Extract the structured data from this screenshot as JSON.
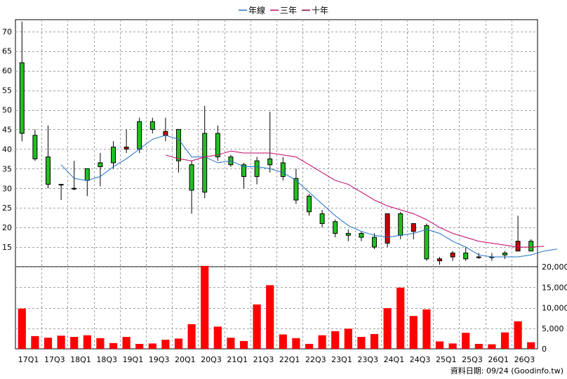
{
  "chart_data": {
    "type": "candlestick-with-volume",
    "legend": [
      {
        "name": "年線",
        "color": "#1f6fc5"
      },
      {
        "name": "三年",
        "color": "#c0006a"
      },
      {
        "name": "十年",
        "color": "#800040"
      }
    ],
    "price_axis": {
      "ticks": [
        15,
        20,
        25,
        30,
        35,
        40,
        45,
        50,
        55,
        60,
        65,
        70
      ],
      "range": [
        10,
        73
      ]
    },
    "volume_axis": {
      "ticks": [
        0,
        5000,
        10000,
        15000,
        20000
      ],
      "labels": [
        "0",
        "5,000",
        "10,000",
        "15,000",
        "20,000"
      ],
      "range": [
        0,
        20000
      ]
    },
    "x_labels": [
      "17Q1",
      "17Q3",
      "18Q1",
      "18Q3",
      "19Q1",
      "19Q3",
      "20Q1",
      "20Q3",
      "21Q1",
      "21Q3",
      "22Q1",
      "22Q3",
      "23Q1",
      "23Q3",
      "24Q1",
      "24Q3",
      "25Q1",
      "25Q3",
      "26Q1",
      "26Q3"
    ],
    "grid": true,
    "legend_position": "top-center",
    "candles": [
      {
        "o": 44,
        "h": 72.5,
        "l": 42,
        "c": 62
      },
      {
        "o": 37.5,
        "h": 45,
        "l": 37,
        "c": 43.5
      },
      {
        "o": 31,
        "h": 46,
        "l": 30,
        "c": 38
      },
      {
        "o": 31,
        "h": 31,
        "l": 27,
        "c": 31
      },
      {
        "o": 30,
        "h": 37,
        "l": 29.5,
        "c": 30
      },
      {
        "o": 32,
        "h": 35,
        "l": 28,
        "c": 35
      },
      {
        "o": 35.5,
        "h": 39,
        "l": 30.5,
        "c": 36.5
      },
      {
        "o": 36.5,
        "h": 42,
        "l": 35,
        "c": 40.5
      },
      {
        "o": 40.5,
        "h": 45,
        "l": 39,
        "c": 40
      },
      {
        "o": 40,
        "h": 48,
        "l": 39,
        "c": 47
      },
      {
        "o": 45,
        "h": 48,
        "l": 44,
        "c": 47
      },
      {
        "o": 44.5,
        "h": 48,
        "l": 42,
        "c": 43.5
      },
      {
        "o": 37,
        "h": 45,
        "l": 34,
        "c": 45
      },
      {
        "o": 29.5,
        "h": 37,
        "l": 23.5,
        "c": 36
      },
      {
        "o": 29,
        "h": 51,
        "l": 27.5,
        "c": 44
      },
      {
        "o": 38,
        "h": 46,
        "l": 37,
        "c": 44
      },
      {
        "o": 36,
        "h": 38.5,
        "l": 35.5,
        "c": 38
      },
      {
        "o": 33,
        "h": 36.5,
        "l": 30,
        "c": 36
      },
      {
        "o": 33,
        "h": 38,
        "l": 31,
        "c": 37
      },
      {
        "o": 36,
        "h": 49.5,
        "l": 34,
        "c": 37.5
      },
      {
        "o": 33,
        "h": 38,
        "l": 32,
        "c": 36.5
      },
      {
        "o": 27,
        "h": 35,
        "l": 26,
        "c": 32.5
      },
      {
        "o": 24,
        "h": 28.5,
        "l": 23,
        "c": 28
      },
      {
        "o": 21,
        "h": 24.5,
        "l": 20,
        "c": 23.5
      },
      {
        "o": 18.5,
        "h": 22,
        "l": 17.5,
        "c": 21.5
      },
      {
        "o": 18,
        "h": 19.5,
        "l": 16.5,
        "c": 18.5
      },
      {
        "o": 17.5,
        "h": 19,
        "l": 16.5,
        "c": 18.5
      },
      {
        "o": 15,
        "h": 18.5,
        "l": 14.5,
        "c": 17.5
      },
      {
        "o": 23.5,
        "h": 23.5,
        "l": 15,
        "c": 16
      },
      {
        "o": 18,
        "h": 24,
        "l": 17,
        "c": 23.5
      },
      {
        "o": 21,
        "h": 21,
        "l": 17,
        "c": 19
      },
      {
        "o": 12,
        "h": 21,
        "l": 11.5,
        "c": 20.5
      },
      {
        "o": 12,
        "h": 12.5,
        "l": 10.5,
        "c": 11.5
      },
      {
        "o": 13.5,
        "h": 14,
        "l": 11.5,
        "c": 12.5
      },
      {
        "o": 12,
        "h": 15,
        "l": 11.5,
        "c": 13.5
      },
      {
        "o": 12.5,
        "h": 13.5,
        "l": 12,
        "c": 12.5
      },
      {
        "o": 12.5,
        "h": 13.5,
        "l": 11.5,
        "c": 12.5
      },
      {
        "o": 13,
        "h": 14,
        "l": 12,
        "c": 13.5
      },
      {
        "o": 16.5,
        "h": 23,
        "l": 14,
        "c": 14
      },
      {
        "o": 14,
        "h": 17,
        "l": 14,
        "c": 16.5
      }
    ],
    "series": [
      {
        "name": "年線",
        "start": 3,
        "values": [
          36,
          32.5,
          32,
          33,
          35.5,
          37.5,
          40,
          42.5,
          43.5,
          42.5,
          38,
          38,
          36.5,
          37,
          35.5,
          35.5,
          35,
          34,
          32,
          29,
          26,
          23,
          20.5,
          19,
          18,
          17.5,
          18,
          18.5,
          19.5,
          18.5,
          16.5,
          15,
          13,
          12.5,
          12.5,
          12.5,
          13,
          14,
          14.5
        ]
      },
      {
        "name": "三年",
        "start": 11,
        "values": [
          38.5,
          37.5,
          37,
          38,
          38.5,
          39.5,
          39,
          39,
          39,
          38.5,
          38,
          36,
          34,
          32,
          31,
          29,
          27,
          25.5,
          24.5,
          23.5,
          22,
          20,
          18.5,
          17.5,
          16.5,
          16,
          15.5,
          15,
          15,
          15.2
        ]
      }
    ],
    "volume": [
      9800,
      3100,
      2700,
      3200,
      2900,
      3300,
      2600,
      1400,
      2900,
      1200,
      1300,
      2200,
      2500,
      6000,
      20200,
      5400,
      2700,
      1900,
      10800,
      15500,
      3500,
      2600,
      1200,
      3300,
      4300,
      4900,
      2900,
      3600,
      9900,
      14900,
      8000,
      9600,
      1800,
      1300,
      3900,
      1200,
      1100,
      4000,
      6700,
      1600
    ],
    "footer": "資料日期: 09/24 (Goodinfo.tw)"
  }
}
